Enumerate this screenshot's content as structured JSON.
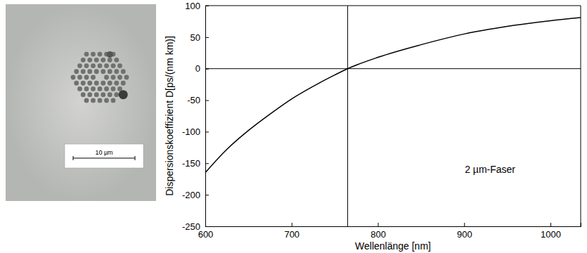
{
  "chart_data": {
    "type": "line",
    "ylabel": "Dispersionskoeffizient D[ps/(nm km)]",
    "xlabel": "Wellenlänge [nm]",
    "x": [
      600,
      625,
      650,
      675,
      700,
      725,
      750,
      765,
      800,
      850,
      900,
      950,
      1000,
      1035
    ],
    "series": [
      {
        "color": "#000000",
        "line_style": "solid",
        "values": [
          -165,
          -128,
          -98,
          -72,
          -48,
          -28,
          -10,
          0,
          18,
          38,
          55,
          67,
          76,
          81
        ]
      }
    ],
    "xlim": [
      600,
      1035
    ],
    "xticks": [
      600,
      700,
      800,
      900,
      1000
    ],
    "ylim": [
      -250,
      100
    ],
    "yticks": [
      -250,
      -200,
      -150,
      -100,
      -50,
      0,
      50,
      100
    ],
    "grid": false,
    "reference_lines": {
      "x": [
        765
      ],
      "y": [
        0
      ]
    },
    "annotations": [
      {
        "text": "2 µm-Faser",
        "x": 930,
        "y": -165
      }
    ]
  },
  "photo": {
    "scale_bar": {
      "label": "10 µm"
    }
  }
}
